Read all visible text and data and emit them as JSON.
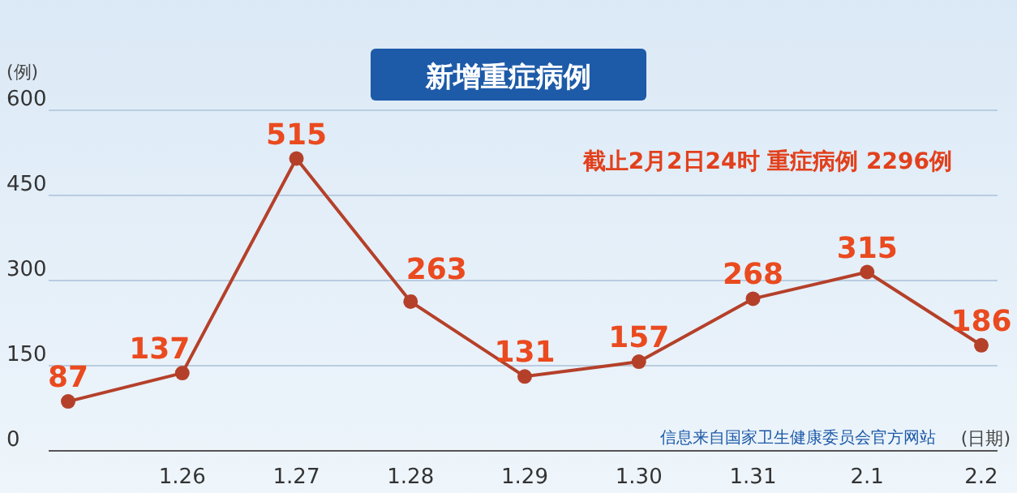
{
  "chart_data": {
    "type": "line",
    "title": "新增重症病例",
    "ylabel": "(例)",
    "xlabel": "(日期)",
    "categories": [
      null,
      "1.26",
      "1.27",
      "1.28",
      "1.29",
      "1.30",
      "1.31",
      "2.1",
      "2.2"
    ],
    "series": [
      {
        "color": "#b5402a",
        "values": [
          87,
          137,
          515,
          263,
          131,
          157,
          268,
          315,
          186
        ]
      }
    ],
    "ylim": [
      0,
      600
    ],
    "yticks": [
      0,
      150,
      300,
      450,
      600
    ],
    "grid": "y",
    "marker": "circle",
    "data_labels": true,
    "annotations": [
      "截止2月2日24时 重症病例 2296例",
      "信息来自国家卫生健康委员会官方网站"
    ]
  }
}
